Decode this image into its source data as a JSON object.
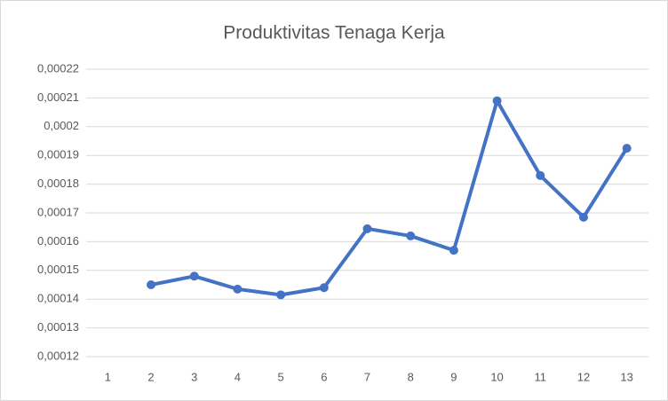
{
  "chart_data": {
    "type": "line",
    "title": "Produktivitas Tenaga Kerja",
    "categories": [
      "1",
      "2",
      "3",
      "4",
      "5",
      "6",
      "7",
      "8",
      "9",
      "10",
      "11",
      "12",
      "13"
    ],
    "values": [
      null,
      0.000145,
      0.000148,
      0.0001435,
      0.0001415,
      0.000144,
      0.0001645,
      0.000162,
      0.000157,
      0.000209,
      0.000183,
      0.0001685,
      0.0001925
    ],
    "color": "#4472c4",
    "ylim": [
      0.00012,
      0.00022
    ],
    "yticks": [
      {
        "value": 0.00012,
        "label": "0,00012"
      },
      {
        "value": 0.00013,
        "label": "0,00013"
      },
      {
        "value": 0.00014,
        "label": "0,00014"
      },
      {
        "value": 0.00015,
        "label": "0,00015"
      },
      {
        "value": 0.00016,
        "label": "0,00016"
      },
      {
        "value": 0.00017,
        "label": "0,00017"
      },
      {
        "value": 0.00018,
        "label": "0,00018"
      },
      {
        "value": 0.00019,
        "label": "0,00019"
      },
      {
        "value": 0.0002,
        "label": "0,0002"
      },
      {
        "value": 0.00021,
        "label": "0,00021"
      },
      {
        "value": 0.00022,
        "label": "0,00022"
      }
    ],
    "grid": true
  }
}
